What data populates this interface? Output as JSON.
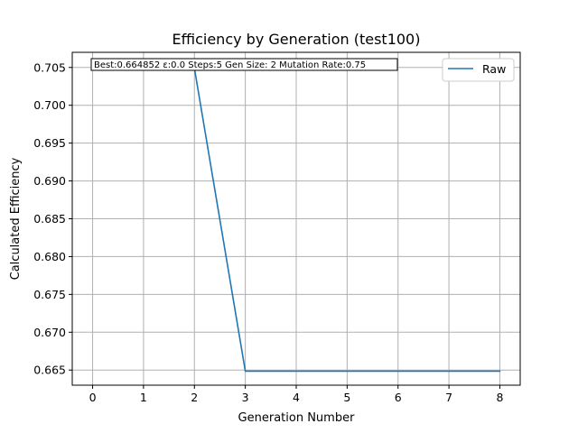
{
  "chart_data": {
    "type": "line",
    "title": "Efficiency by Generation (test100)",
    "xlabel": "Generation Number",
    "ylabel": "Calculated Efficiency",
    "xlim": [
      -0.4,
      8.4
    ],
    "ylim": [
      0.663,
      0.707
    ],
    "xticks": [
      0,
      1,
      2,
      3,
      4,
      5,
      6,
      7,
      8
    ],
    "xtick_labels": [
      "0",
      "1",
      "2",
      "3",
      "4",
      "5",
      "6",
      "7",
      "8"
    ],
    "yticks": [
      0.665,
      0.67,
      0.675,
      0.68,
      0.685,
      0.69,
      0.695,
      0.7,
      0.705
    ],
    "ytick_labels": [
      "0.665",
      "0.670",
      "0.675",
      "0.680",
      "0.685",
      "0.690",
      "0.695",
      "0.700",
      "0.705"
    ],
    "grid": true,
    "legend_position": "upper right",
    "series": [
      {
        "name": "Raw",
        "color": "#1f77b4",
        "x": [
          2,
          3,
          4,
          5,
          6,
          7,
          8
        ],
        "y": [
          0.7049,
          0.664852,
          0.664852,
          0.664852,
          0.664852,
          0.664852,
          0.664852
        ]
      }
    ],
    "annotation": "Best:0.664852 ε:0.0 Steps:5 Gen Size: 2 Mutation Rate:0.75"
  }
}
